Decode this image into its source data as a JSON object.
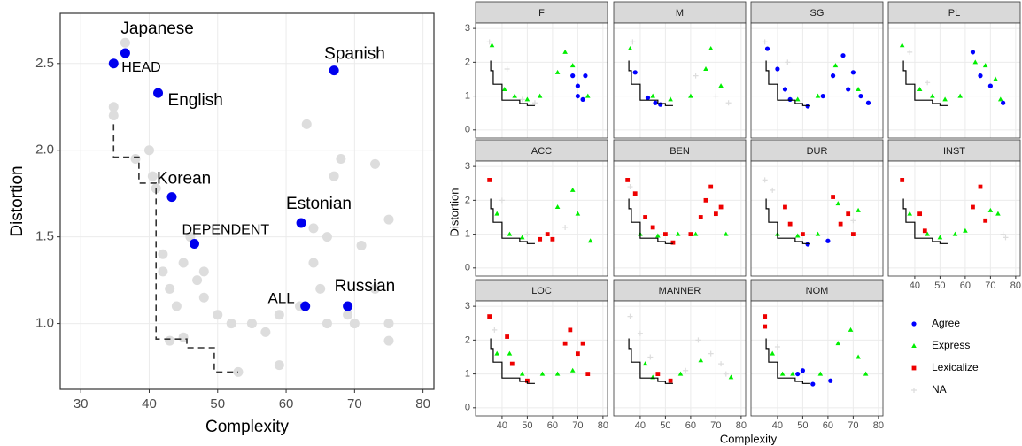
{
  "chart_data": [
    {
      "type": "scatter",
      "xlabel": "Complexity",
      "ylabel": "Distortion",
      "xlim": [
        27,
        81.6
      ],
      "ylim": [
        0.62,
        2.79
      ],
      "xticks": [
        30,
        40,
        50,
        60,
        70,
        80
      ],
      "yticks": [
        {
          "value": 1,
          "label": "1.0"
        },
        {
          "value": 1.5,
          "label": "1.5"
        },
        {
          "value": 2,
          "label": "2.0"
        },
        {
          "value": 2.5,
          "label": "2.5"
        }
      ],
      "grid": true,
      "point_color": "#dddddd",
      "label_color": "#0000ee",
      "x": [
        36.5,
        34.8,
        34.8,
        38,
        40,
        40.5,
        41,
        42,
        42,
        43,
        44,
        45,
        46,
        47,
        48,
        48,
        50,
        52,
        55,
        57,
        59,
        59,
        62,
        63,
        64,
        64,
        65,
        66,
        67,
        68,
        69,
        70,
        71,
        73,
        73,
        75,
        75,
        75,
        66,
        53,
        45,
        43
      ],
      "y": [
        2.62,
        2.25,
        2.2,
        1.95,
        2.0,
        1.85,
        1.78,
        1.4,
        1.3,
        1.2,
        1.1,
        1.35,
        1.5,
        1.25,
        1.3,
        1.15,
        1.05,
        1.0,
        1.0,
        0.95,
        1.05,
        0.76,
        1.1,
        2.15,
        1.55,
        1.35,
        1.2,
        1.0,
        1.85,
        1.95,
        1.05,
        1.0,
        1.45,
        1.92,
        1.2,
        1.6,
        1.0,
        0.9,
        1.5,
        0.72,
        0.92,
        0.9
      ],
      "labeled": [
        {
          "label": "Japanese",
          "x": 36.5,
          "y": 2.56
        },
        {
          "label": "HEAD",
          "x": 34.8,
          "y": 2.5
        },
        {
          "label": "English",
          "x": 41.3,
          "y": 2.33
        },
        {
          "label": "Spanish",
          "x": 67,
          "y": 2.46
        },
        {
          "label": "Korean",
          "x": 43.3,
          "y": 1.73
        },
        {
          "label": "Estonian",
          "x": 62.2,
          "y": 1.58
        },
        {
          "label": "DEPENDENT",
          "x": 46.6,
          "y": 1.46
        },
        {
          "label": "ALL",
          "x": 62.8,
          "y": 1.1
        },
        {
          "label": "Russian",
          "x": 69,
          "y": 1.1
        }
      ],
      "frontier": {
        "x": [
          34.8,
          34.8,
          38.5,
          38.5,
          41,
          41,
          45.5,
          45.5,
          49.5,
          49.5,
          53
        ],
        "y": [
          2.15,
          1.96,
          1.96,
          1.81,
          1.81,
          0.91,
          0.91,
          0.86,
          0.86,
          0.72,
          0.72
        ]
      }
    },
    {
      "type": "facet-scatter",
      "xlabel": "Complexity",
      "ylabel": "Distortion",
      "xlim": [
        29.5,
        81.8
      ],
      "ylim": [
        -0.24,
        3.16
      ],
      "xticks": [
        40,
        50,
        60,
        70,
        80
      ],
      "yticks": [
        0,
        1,
        2,
        3
      ],
      "grid": true,
      "series": [
        {
          "name": "Agree",
          "color": "#0000ff",
          "shape": "circle"
        },
        {
          "name": "Express",
          "color": "#00ee00",
          "shape": "triangle"
        },
        {
          "name": "Lexicalize",
          "color": "#ee0000",
          "shape": "square"
        },
        {
          "name": "NA",
          "color": "#dddddd",
          "shape": "plus"
        }
      ],
      "frontier": {
        "x": [
          35.5,
          35.5,
          36.5,
          36.5,
          40,
          40,
          47,
          47,
          50,
          50,
          53
        ],
        "y": [
          2.05,
          1.75,
          1.75,
          1.35,
          1.35,
          0.88,
          0.88,
          0.78,
          0.78,
          0.72,
          0.72
        ]
      },
      "facets": [
        {
          "title": "F",
          "series": [
            {
              "x": [
                68,
                70,
                72,
                73,
                70
              ],
              "y": [
                1.6,
                1.3,
                0.9,
                1.6,
                1.0
              ]
            },
            {
              "x": [
                36,
                41,
                45,
                50,
                55,
                62,
                65,
                68,
                74
              ],
              "y": [
                2.5,
                1.2,
                1.0,
                0.9,
                1.0,
                1.7,
                2.3,
                1.9,
                1.0
              ]
            },
            {
              "x": [],
              "y": []
            },
            {
              "x": [
                35,
                42,
                48,
                53
              ],
              "y": [
                2.6,
                1.8,
                0.9,
                0.8
              ]
            }
          ]
        },
        {
          "title": "M",
          "series": [
            {
              "x": [
                38,
                43,
                46,
                48
              ],
              "y": [
                1.7,
                0.95,
                0.8,
                0.75
              ]
            },
            {
              "x": [
                36,
                45,
                52,
                60,
                66,
                68,
                72
              ],
              "y": [
                2.4,
                1.0,
                0.9,
                1.0,
                1.8,
                2.4,
                1.3
              ]
            },
            {
              "x": [],
              "y": []
            },
            {
              "x": [
                37,
                62,
                70,
                75
              ],
              "y": [
                2.6,
                1.6,
                1.0,
                0.8
              ]
            }
          ]
        },
        {
          "title": "SG",
          "series": [
            {
              "x": [
                36,
                40,
                43,
                45,
                52,
                58,
                62,
                66,
                68,
                70,
                73,
                76
              ],
              "y": [
                2.4,
                1.8,
                1.2,
                0.9,
                0.7,
                1.0,
                1.6,
                2.2,
                1.2,
                1.7,
                1.0,
                0.8
              ]
            },
            {
              "x": [
                48,
                56,
                63,
                72
              ],
              "y": [
                0.9,
                1.0,
                1.9,
                1.2
              ]
            },
            {
              "x": [],
              "y": []
            },
            {
              "x": [
                35,
                44
              ],
              "y": [
                2.6,
                2.0
              ]
            }
          ]
        },
        {
          "title": "PL",
          "series": [
            {
              "x": [
                63,
                66,
                70,
                75
              ],
              "y": [
                2.3,
                1.6,
                1.3,
                0.8
              ]
            },
            {
              "x": [
                35,
                42,
                47,
                52,
                58,
                64,
                68,
                72,
                74
              ],
              "y": [
                2.5,
                1.2,
                1.0,
                0.9,
                1.0,
                2.0,
                1.9,
                1.5,
                0.9
              ]
            },
            {
              "x": [],
              "y": []
            },
            {
              "x": [
                38,
                45
              ],
              "y": [
                2.3,
                1.4
              ]
            }
          ]
        },
        {
          "title": "ACC",
          "series": [
            {
              "x": [],
              "y": []
            },
            {
              "x": [
                38,
                43,
                48,
                62,
                68,
                70,
                75
              ],
              "y": [
                1.6,
                1.0,
                0.9,
                1.8,
                2.3,
                1.6,
                0.8
              ]
            },
            {
              "x": [
                35,
                55,
                60,
                58
              ],
              "y": [
                2.6,
                0.85,
                0.85,
                1.0
              ]
            },
            {
              "x": [
                40,
                50,
                65
              ],
              "y": [
                2.0,
                1.0,
                1.2
              ]
            }
          ]
        },
        {
          "title": "BEN",
          "series": [
            {
              "x": [],
              "y": []
            },
            {
              "x": [
                40,
                47,
                55,
                62,
                74
              ],
              "y": [
                1.0,
                0.95,
                1.0,
                1.0,
                1.0
              ]
            },
            {
              "x": [
                35,
                38,
                42,
                45,
                50,
                53,
                60,
                64,
                66,
                68,
                70,
                72
              ],
              "y": [
                2.6,
                2.2,
                1.5,
                1.2,
                1.0,
                0.75,
                1.0,
                1.5,
                2.0,
                2.4,
                1.6,
                1.8
              ]
            },
            {
              "x": [
                36
              ],
              "y": [
                2.4
              ]
            }
          ]
        },
        {
          "title": "DUR",
          "series": [
            {
              "x": [
                52,
                60
              ],
              "y": [
                0.7,
                0.8
              ]
            },
            {
              "x": [
                40,
                48,
                56,
                64,
                72
              ],
              "y": [
                1.0,
                0.95,
                1.0,
                1.9,
                1.7
              ]
            },
            {
              "x": [
                43,
                45,
                50,
                62,
                65,
                68,
                70
              ],
              "y": [
                1.8,
                1.3,
                1.0,
                2.1,
                1.3,
                1.6,
                1.0
              ]
            },
            {
              "x": [
                35,
                38,
                70
              ],
              "y": [
                2.6,
                2.3,
                1.4
              ]
            }
          ]
        },
        {
          "title": "INST",
          "series": [
            {
              "x": [],
              "y": []
            },
            {
              "x": [
                38,
                45,
                50,
                56,
                60,
                70,
                73
              ],
              "y": [
                1.6,
                1.0,
                0.9,
                1.0,
                1.1,
                1.7,
                1.6
              ]
            },
            {
              "x": [
                35,
                42,
                44,
                63,
                66,
                68
              ],
              "y": [
                2.6,
                1.6,
                1.1,
                1.8,
                2.4,
                1.4
              ]
            },
            {
              "x": [
                75,
                76
              ],
              "y": [
                1.0,
                0.9
              ]
            }
          ]
        },
        {
          "title": "LOC",
          "series": [
            {
              "x": [],
              "y": []
            },
            {
              "x": [
                38,
                43,
                48,
                56,
                62,
                68
              ],
              "y": [
                1.6,
                1.6,
                1.0,
                1.0,
                1.0,
                1.1
              ]
            },
            {
              "x": [
                35,
                42,
                44,
                50,
                65,
                67,
                70,
                72,
                74
              ],
              "y": [
                2.7,
                2.1,
                1.3,
                0.8,
                1.9,
                2.3,
                1.6,
                1.9,
                1.0
              ]
            },
            {
              "x": [
                37
              ],
              "y": [
                2.3
              ]
            }
          ]
        },
        {
          "title": "MANNER",
          "series": [
            {
              "x": [],
              "y": []
            },
            {
              "x": [
                42,
                45,
                56,
                64,
                76
              ],
              "y": [
                1.3,
                0.9,
                1.0,
                1.4,
                0.9
              ]
            },
            {
              "x": [
                47,
                52
              ],
              "y": [
                1.0,
                0.8
              ]
            },
            {
              "x": [
                36,
                40,
                44,
                58,
                63,
                68,
                72,
                74
              ],
              "y": [
                2.7,
                2.2,
                1.5,
                1.1,
                2.0,
                1.6,
                1.3,
                1.0
              ]
            }
          ]
        },
        {
          "title": "NOM",
          "series": [
            {
              "x": [
                48,
                50,
                54,
                61
              ],
              "y": [
                1.0,
                1.1,
                0.7,
                0.8
              ]
            },
            {
              "x": [
                38,
                42,
                46,
                57,
                64,
                69,
                72,
                75
              ],
              "y": [
                1.6,
                1.0,
                1.0,
                1.0,
                1.9,
                2.3,
                1.5,
                1.0
              ]
            },
            {
              "x": [
                35,
                35
              ],
              "y": [
                2.7,
                2.4
              ]
            },
            {
              "x": [
                40
              ],
              "y": [
                1.8
              ]
            }
          ]
        }
      ]
    }
  ]
}
